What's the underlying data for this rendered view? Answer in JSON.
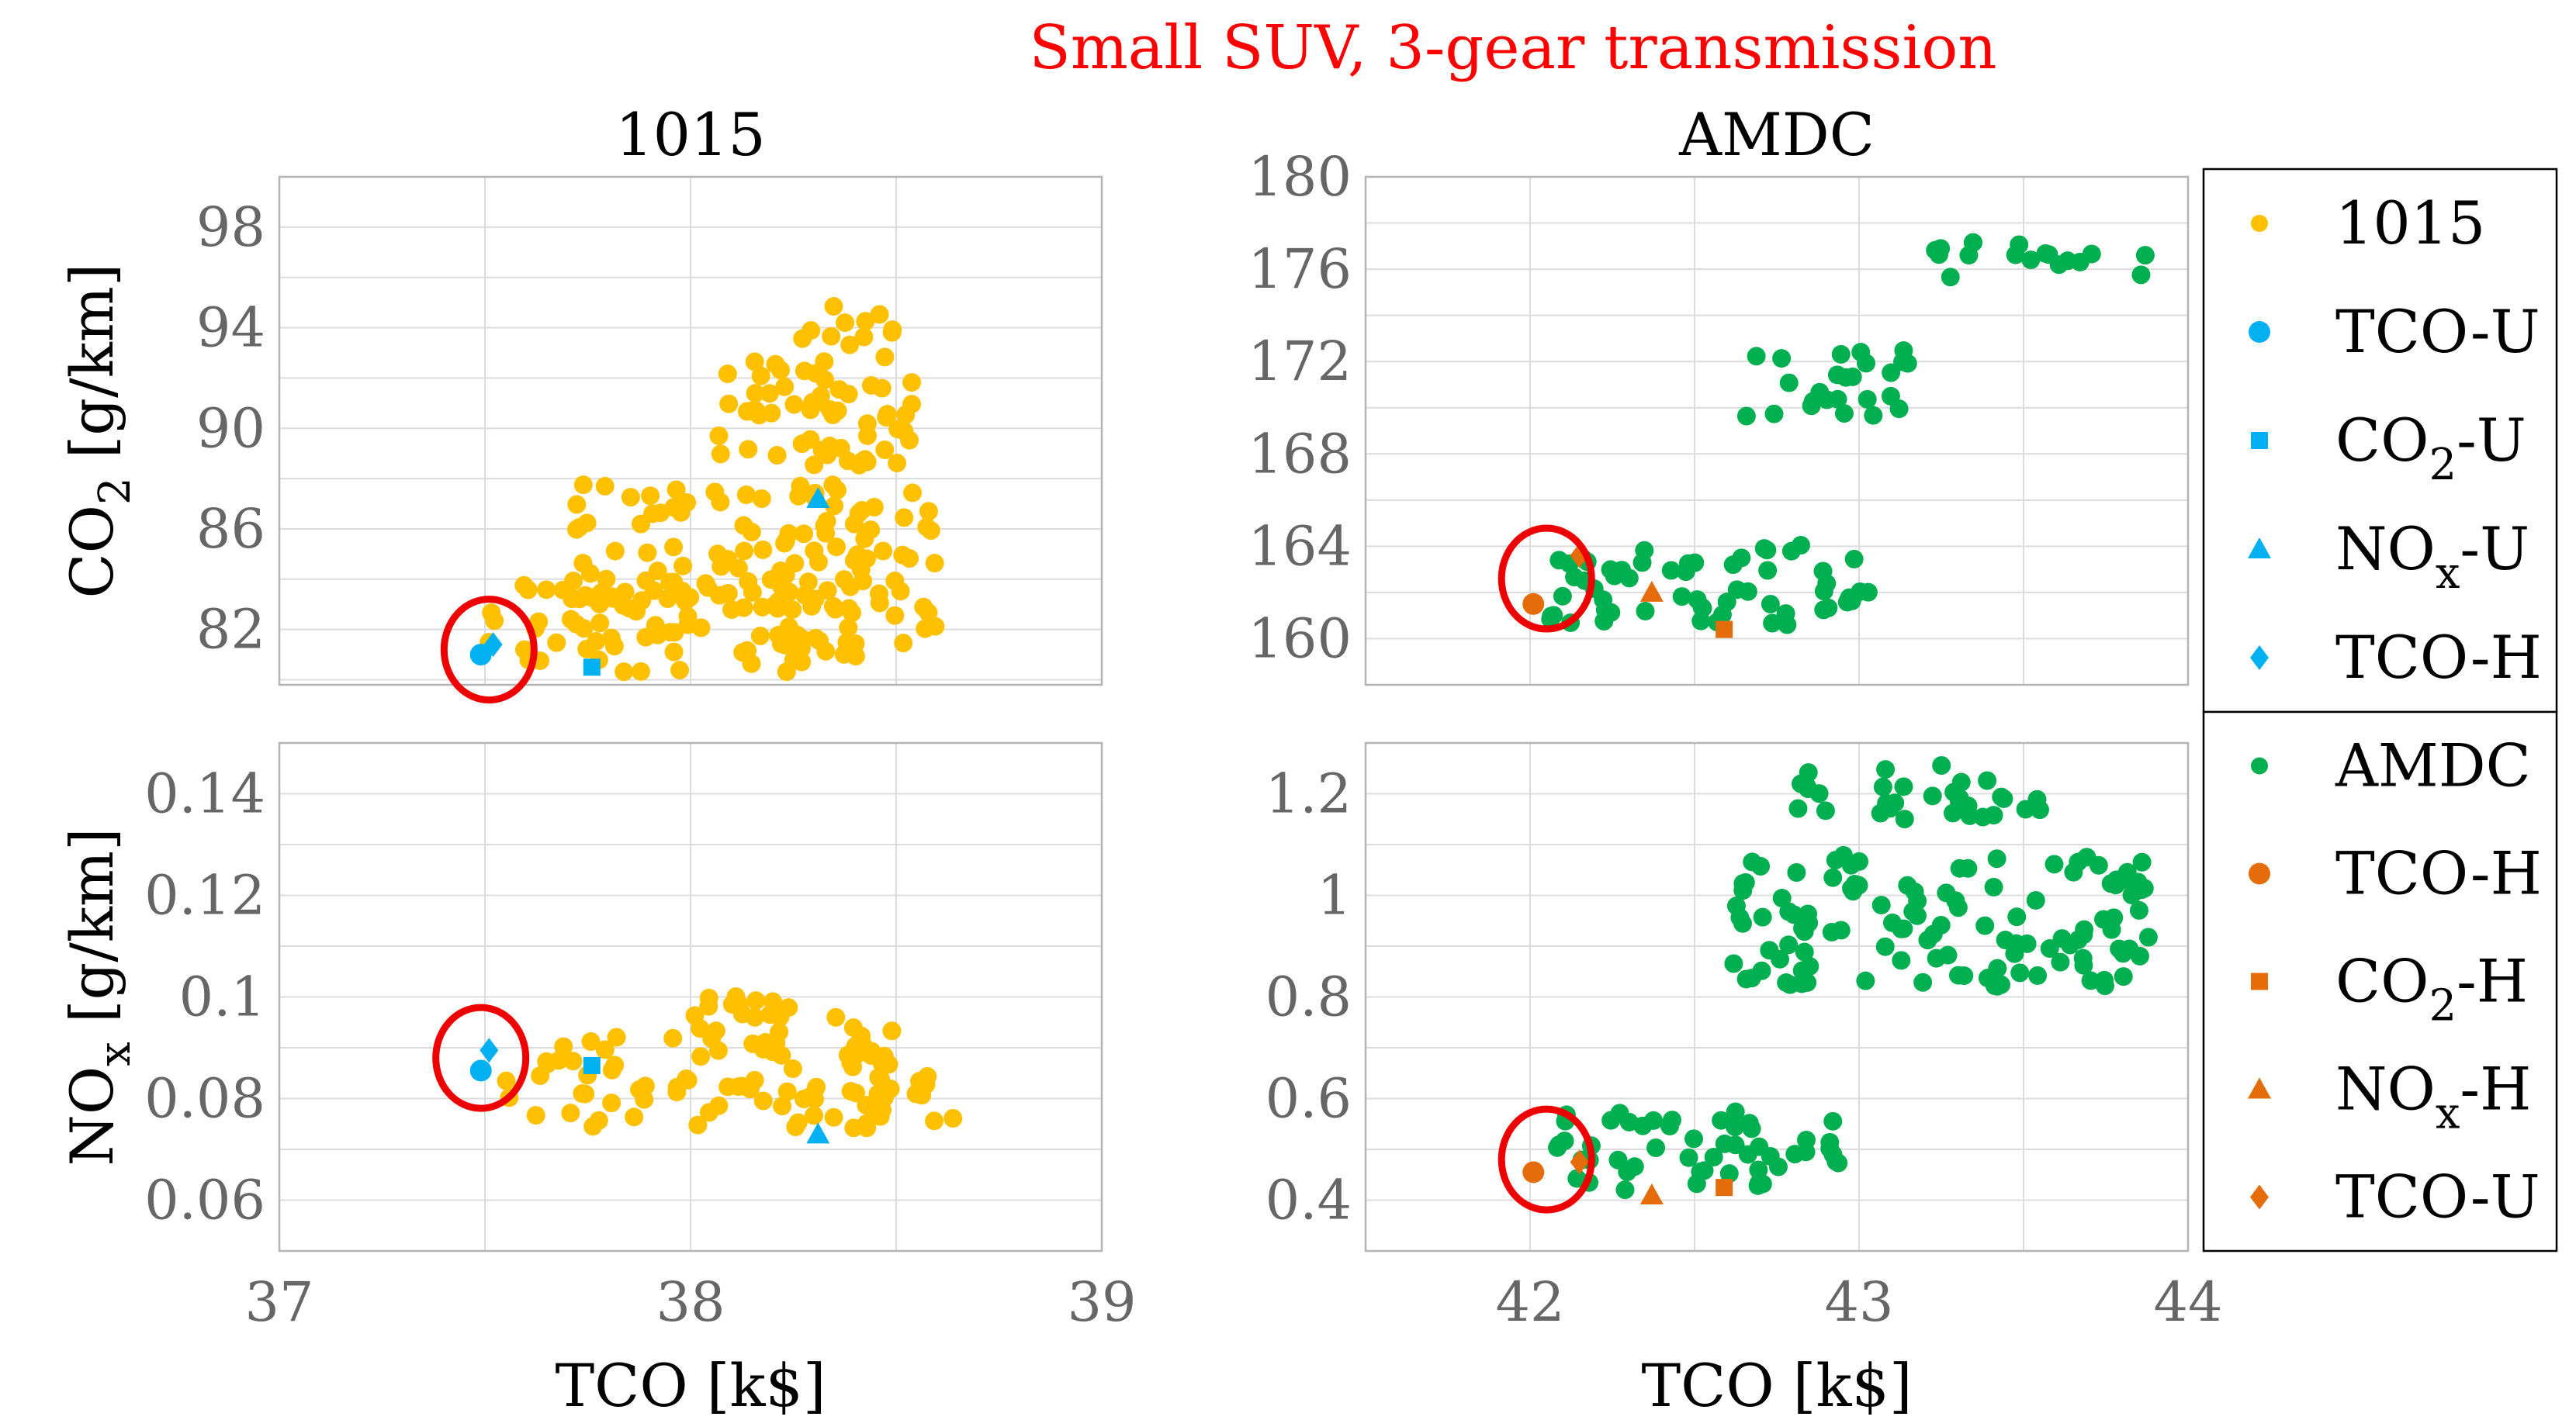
{
  "chart_data": {
    "type": "scatter",
    "title": "Small SUV, 3-gear transmission",
    "colors": {
      "cycle_1015": "#ffc000",
      "cycle_amdc": "#00b050",
      "utopian": "#00b0f0",
      "heuristic": "#e46c0a",
      "highlight": "#ee0000"
    },
    "panels": [
      {
        "id": "p1015co2",
        "title": "1015",
        "xlabel": "",
        "ylabel": "CO",
        "ylabel_sub": "2",
        "ylabel_unit": " [g/km]",
        "xlim": [
          37,
          39
        ],
        "ylim": [
          79.8,
          100
        ],
        "xticks": [],
        "yticks": [
          "82",
          "86",
          "90",
          "94",
          "98"
        ],
        "cloud_color": "#ffc000",
        "clusters": [
          [
            37.5,
            38.6,
            80.3,
            84.0
          ],
          [
            37.7,
            38.6,
            82.5,
            87.8
          ],
          [
            38.05,
            38.35,
            88.8,
            92.8
          ],
          [
            38.25,
            38.55,
            88.5,
            95.0
          ]
        ],
        "special": [
          {
            "label": "TCO-U",
            "marker": "circle",
            "x": 37.49,
            "y": 81.0
          },
          {
            "label": "CO2-U",
            "marker": "square",
            "x": 37.76,
            "y": 80.5
          },
          {
            "label": "NOx-U",
            "marker": "triangle",
            "x": 38.31,
            "y": 87.2
          },
          {
            "label": "TCO-H",
            "marker": "diamond",
            "x": 37.52,
            "y": 81.4
          }
        ],
        "highlight": {
          "x": 37.51,
          "y": 81.2
        }
      },
      {
        "id": "p1015nox",
        "title": "",
        "xlabel": "TCO [k$]",
        "ylabel": "NO",
        "ylabel_sub": "x",
        "ylabel_unit": " [g/km]",
        "xlim": [
          37,
          39
        ],
        "ylim": [
          0.05,
          0.15
        ],
        "xticks": [
          "37",
          "38",
          "39"
        ],
        "yticks": [
          "0.06",
          "0.08",
          "0.1",
          "0.12",
          "0.14"
        ],
        "cloud_color": "#ffc000",
        "clusters": [
          [
            37.55,
            38.5,
            0.074,
            0.094
          ],
          [
            38.0,
            38.4,
            0.095,
            0.101
          ],
          [
            38.45,
            38.66,
            0.075,
            0.085
          ]
        ],
        "special": [
          {
            "label": "TCO-U",
            "marker": "circle",
            "x": 37.49,
            "y": 0.0855
          },
          {
            "label": "CO2-U",
            "marker": "square",
            "x": 37.76,
            "y": 0.0865
          },
          {
            "label": "NOx-U",
            "marker": "triangle",
            "x": 38.31,
            "y": 0.073
          },
          {
            "label": "TCO-H",
            "marker": "diamond",
            "x": 37.51,
            "y": 0.0895
          }
        ],
        "highlight": {
          "x": 37.49,
          "y": 0.088
        }
      },
      {
        "id": "pamdcco2",
        "title": "AMDC",
        "xlabel": "",
        "ylabel": "",
        "ylabel_sub": "",
        "ylabel_unit": "",
        "xlim": [
          41.5,
          44
        ],
        "ylim": [
          158,
          180
        ],
        "xticks": [],
        "yticks": [
          "160",
          "164",
          "168",
          "172",
          "176",
          "180"
        ],
        "cloud_color": "#00b050",
        "clusters": [
          [
            42.05,
            43.05,
            160.6,
            164.2
          ],
          [
            42.65,
            43.15,
            169.5,
            172.6
          ],
          [
            43.2,
            43.9,
            175.6,
            177.2
          ]
        ],
        "special": [
          {
            "label": "TCO-H",
            "marker": "circle",
            "x": 42.01,
            "y": 161.5
          },
          {
            "label": "CO2-H",
            "marker": "square",
            "x": 42.59,
            "y": 160.4
          },
          {
            "label": "NOx-H",
            "marker": "triangle",
            "x": 42.37,
            "y": 162.0
          },
          {
            "label": "TCO-U",
            "marker": "diamond",
            "x": 42.15,
            "y": 163.6
          }
        ],
        "highlight": {
          "x": 42.05,
          "y": 162.6
        }
      },
      {
        "id": "pamdcnox",
        "title": "",
        "xlabel": "TCO [k$]",
        "ylabel": "",
        "ylabel_sub": "",
        "ylabel_unit": "",
        "xlim": [
          41.5,
          44
        ],
        "ylim": [
          0.3,
          1.3
        ],
        "xticks": [
          "42",
          "43",
          "44"
        ],
        "yticks": [
          "0.4",
          "0.6",
          "0.8",
          "1",
          "1.2"
        ],
        "cloud_color": "#00b050",
        "clusters": [
          [
            42.08,
            43.0,
            0.42,
            0.58
          ],
          [
            42.6,
            43.9,
            0.82,
            1.08
          ],
          [
            42.75,
            43.55,
            1.15,
            1.26
          ]
        ],
        "special": [
          {
            "label": "TCO-H",
            "marker": "circle",
            "x": 42.01,
            "y": 0.455
          },
          {
            "label": "CO2-H",
            "marker": "square",
            "x": 42.59,
            "y": 0.425
          },
          {
            "label": "NOx-H",
            "marker": "triangle",
            "x": 42.37,
            "y": 0.41
          },
          {
            "label": "TCO-U",
            "marker": "diamond",
            "x": 42.15,
            "y": 0.475
          }
        ],
        "highlight": {
          "x": 42.05,
          "y": 0.48
        }
      }
    ],
    "legends": [
      {
        "id": "legend1015",
        "items": [
          {
            "label": "1015",
            "sub": "",
            "suffix": "",
            "marker": "circle-small",
            "color": "#ffc000"
          },
          {
            "label": "TCO-U",
            "sub": "",
            "suffix": "",
            "marker": "circle",
            "color": "#00b0f0"
          },
          {
            "label": "CO",
            "sub": "2",
            "suffix": "-U",
            "marker": "square",
            "color": "#00b0f0"
          },
          {
            "label": "NO",
            "sub": "x",
            "suffix": "-U",
            "marker": "triangle",
            "color": "#00b0f0"
          },
          {
            "label": "TCO-H",
            "sub": "",
            "suffix": "",
            "marker": "diamond",
            "color": "#00b0f0"
          }
        ]
      },
      {
        "id": "legendamdc",
        "items": [
          {
            "label": "AMDC",
            "sub": "",
            "suffix": "",
            "marker": "circle-small",
            "color": "#00b050"
          },
          {
            "label": "TCO-H",
            "sub": "",
            "suffix": "",
            "marker": "circle",
            "color": "#e46c0a"
          },
          {
            "label": "CO",
            "sub": "2",
            "suffix": "-H",
            "marker": "square",
            "color": "#e46c0a"
          },
          {
            "label": "NO",
            "sub": "x",
            "suffix": "-H",
            "marker": "triangle",
            "color": "#e46c0a"
          },
          {
            "label": "TCO-U",
            "sub": "",
            "suffix": "",
            "marker": "diamond",
            "color": "#e46c0a"
          }
        ]
      }
    ]
  }
}
